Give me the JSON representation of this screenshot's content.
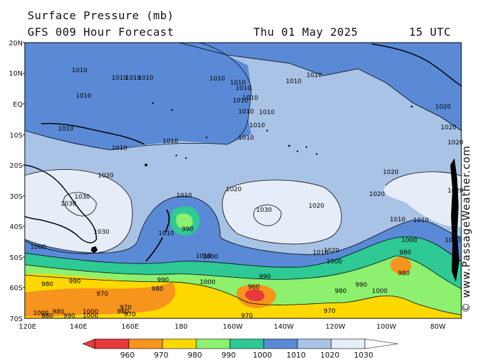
{
  "header": {
    "title": "Surface Pressure (mb)",
    "subtitle": "GFS 009 Hour Forecast",
    "date": "Thu 01 May 2025",
    "time": "15 UTC"
  },
  "credit": "© www.PassageWeather.com",
  "axes": {
    "lat_labels": [
      "20N",
      "10N",
      "EQ",
      "10S",
      "20S",
      "30S",
      "40S",
      "50S",
      "60S",
      "70S"
    ],
    "lon_labels": [
      "120E",
      "140E",
      "160E",
      "180",
      "160W",
      "140W",
      "120W",
      "100W",
      "80W"
    ]
  },
  "legend": {
    "levels": [
      "960",
      "970",
      "980",
      "990",
      "1000",
      "1010",
      "1020",
      "1030"
    ],
    "colors": [
      "#e8393c",
      "#f7941d",
      "#ffd800",
      "#8df06e",
      "#2ec994",
      "#5a8ad6",
      "#a9c3e6",
      "#e6edf8"
    ]
  },
  "colors": {
    "land": "#000000",
    "axis": "#000000"
  },
  "isobars": {
    "values": [
      "1010",
      "1010",
      "1010",
      "1010",
      "1010",
      "1010",
      "1010",
      "1010",
      "1010",
      "1010",
      "1010",
      "1010",
      "1010",
      "1010",
      "1010",
      "1010",
      "1010",
      "1010",
      "1010",
      "1020",
      "1020",
      "1020",
      "1020",
      "1020",
      "1020",
      "1020",
      "1020",
      "1030",
      "1030",
      "1030",
      "1030",
      "1010",
      "1010",
      "990",
      "1010",
      "1000",
      "1010",
      "1000",
      "1020",
      "1000",
      "1000",
      "1000",
      "990",
      "990",
      "990",
      "980",
      "980",
      "980",
      "970",
      "970",
      "970",
      "970",
      "970",
      "960",
      "980",
      "990",
      "1000",
      "980",
      "990",
      "1000",
      "1010",
      "1000",
      "1020",
      "1010",
      "980",
      "1000",
      "980",
      "1000",
      "980"
    ]
  }
}
